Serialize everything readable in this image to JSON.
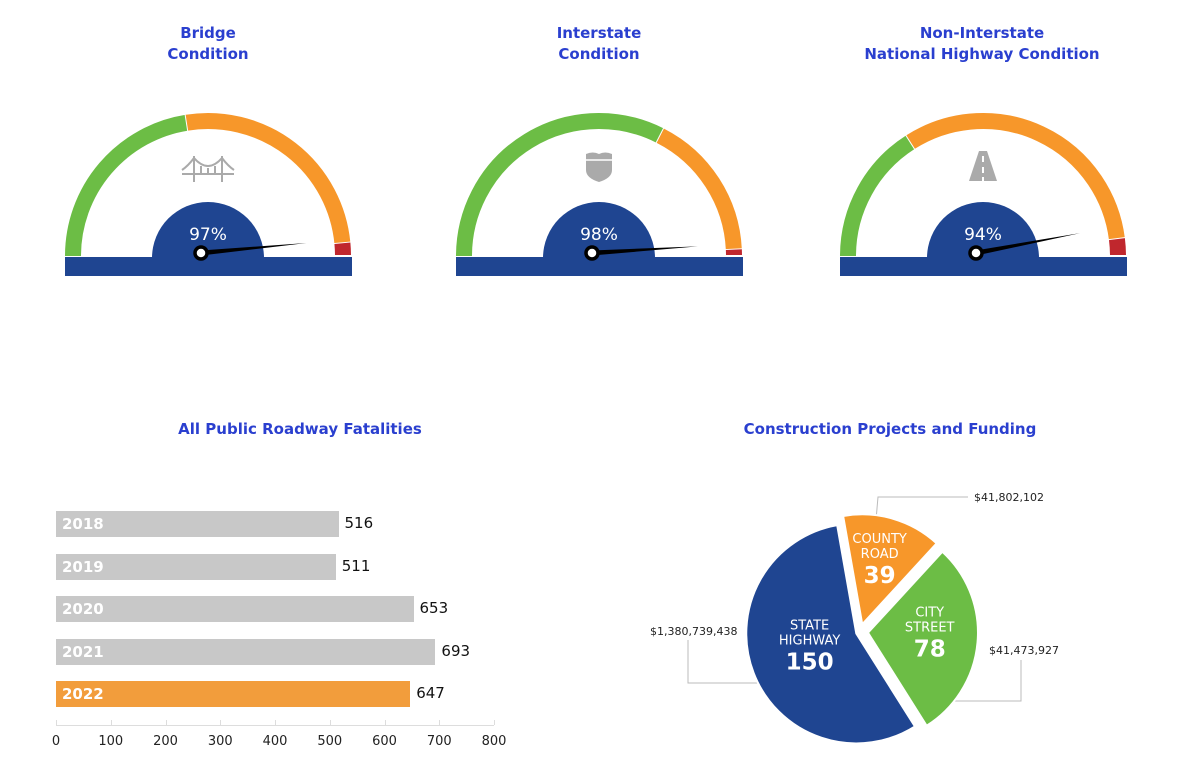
{
  "gauges": [
    {
      "title_line1": "Bridge",
      "title_line2": "Condition",
      "value": 97,
      "label": "97%",
      "icon": "bridge-icon",
      "segments": {
        "green_end": 45,
        "orange_end": 97
      }
    },
    {
      "title_line1": "Interstate",
      "title_line2": "Condition",
      "value": 98,
      "label": "98%",
      "icon": "interstate-shield-icon",
      "segments": {
        "green_end": 65,
        "orange_end": 98.5
      }
    },
    {
      "title_line1": "Non-Interstate",
      "title_line2": "National Highway Condition",
      "value": 94,
      "label": "94%",
      "icon": "road-icon",
      "segments": {
        "green_end": 32,
        "orange_end": 96
      }
    }
  ],
  "colors": {
    "green": "#6cbd45",
    "orange": "#f7972a",
    "red": "#c0272d",
    "blue": "#1f4591",
    "gray": "#c8c8c8",
    "bar_highlight": "#f29d3c",
    "title": "#2a3fcf"
  },
  "chart_data": [
    {
      "type": "bar",
      "orientation": "horizontal",
      "title": "All Public Roadway Fatalities",
      "categories": [
        "2018",
        "2019",
        "2020",
        "2021",
        "2022"
      ],
      "values": [
        516,
        511,
        653,
        693,
        647
      ],
      "value_labels": [
        "516",
        "511",
        "653",
        "693",
        "647"
      ],
      "highlight": "2022",
      "xlim": [
        0,
        800
      ],
      "xticks": [
        "0",
        "100",
        "200",
        "300",
        "400",
        "500",
        "600",
        "700",
        "800"
      ],
      "grid": false
    },
    {
      "type": "pie",
      "title": "Construction Projects and Funding",
      "slices": [
        {
          "name_line1": "COUNTY",
          "name_line2": "ROAD",
          "value": 39,
          "value_label": "39",
          "funding": "$41,802,102",
          "color": "#f7972a"
        },
        {
          "name_line1": "CITY",
          "name_line2": "STREET",
          "value": 78,
          "value_label": "78",
          "funding": "$41,473,927",
          "color": "#6cbd45"
        },
        {
          "name_line1": "STATE",
          "name_line2": "HIGHWAY",
          "value": 150,
          "value_label": "150",
          "funding": "$1,380,739,438",
          "color": "#1f4591"
        }
      ]
    }
  ]
}
